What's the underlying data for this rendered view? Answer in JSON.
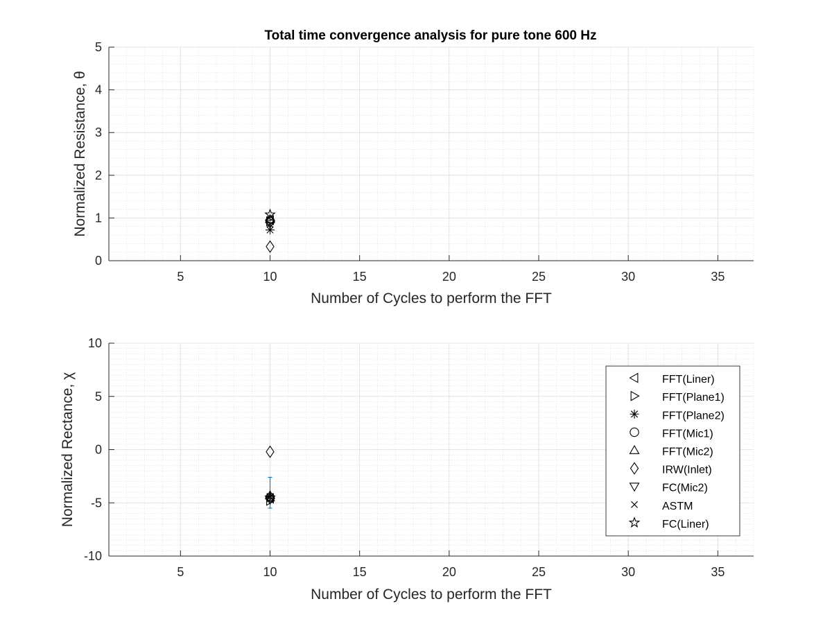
{
  "chart_data": [
    {
      "type": "scatter",
      "title": "Total time convergence analysis for pure tone 600 Hz",
      "xlabel": "Number of Cycles to perform the FFT",
      "ylabel": "Normalized Resistance, θ",
      "xlim": [
        1,
        37
      ],
      "ylim": [
        0,
        5
      ],
      "xticks": [
        5,
        10,
        15,
        20,
        25,
        30,
        35
      ],
      "yticks": [
        0,
        1,
        2,
        3,
        4,
        5
      ],
      "grid": true,
      "minor_grid": true,
      "series": [
        {
          "marker": "triangle-left",
          "x": 10,
          "y": 0.95
        },
        {
          "marker": "triangle-right",
          "x": 10,
          "y": 0.92
        },
        {
          "marker": "asterisk",
          "x": 10,
          "y": 0.72
        },
        {
          "marker": "circle",
          "x": 10,
          "y": 0.93
        },
        {
          "marker": "triangle-up",
          "x": 10,
          "y": 0.97
        },
        {
          "marker": "diamond",
          "x": 10,
          "y": 0.33
        },
        {
          "marker": "triangle-down",
          "x": 10,
          "y": 0.87
        },
        {
          "marker": "x",
          "x": 10,
          "y": 0.85
        },
        {
          "marker": "pentagram",
          "x": 10,
          "y": 1.08
        }
      ],
      "errorbar": {
        "x": 10,
        "low": 0.75,
        "high": 1.05,
        "color": "#0072BD"
      }
    },
    {
      "type": "scatter",
      "title": "",
      "xlabel": "Number of Cycles to perform the FFT",
      "ylabel": "Normalized Rectance, χ",
      "xlim": [
        1,
        37
      ],
      "ylim": [
        -10,
        10
      ],
      "xticks": [
        5,
        10,
        15,
        20,
        25,
        30,
        35
      ],
      "yticks": [
        -10,
        -5,
        0,
        5,
        10
      ],
      "grid": true,
      "minor_grid": true,
      "legend_position": "right",
      "series": [
        {
          "name": "FFT(Liner)",
          "marker": "triangle-left",
          "x": 10,
          "y": -4.6
        },
        {
          "name": "FFT(Plane1)",
          "marker": "triangle-right",
          "x": 10,
          "y": -4.8
        },
        {
          "name": "FFT(Plane2)",
          "marker": "asterisk",
          "x": 10,
          "y": -4.4
        },
        {
          "name": "FFT(Mic1)",
          "marker": "circle",
          "x": 10,
          "y": -4.5
        },
        {
          "name": "FFT(Mic2)",
          "marker": "triangle-up",
          "x": 10,
          "y": -4.3
        },
        {
          "name": "IRW(Inlet)",
          "marker": "diamond",
          "x": 10,
          "y": -0.2
        },
        {
          "name": "FC(Mic2)",
          "marker": "triangle-down",
          "x": 10,
          "y": -4.7
        },
        {
          "name": "ASTM",
          "marker": "x",
          "x": 10,
          "y": -4.4
        },
        {
          "name": "FC(Liner)",
          "marker": "pentagram",
          "x": 10,
          "y": -4.5
        }
      ],
      "errorbar": {
        "x": 10,
        "low": -5.5,
        "high": -2.6,
        "color": "#0072BD"
      }
    }
  ]
}
